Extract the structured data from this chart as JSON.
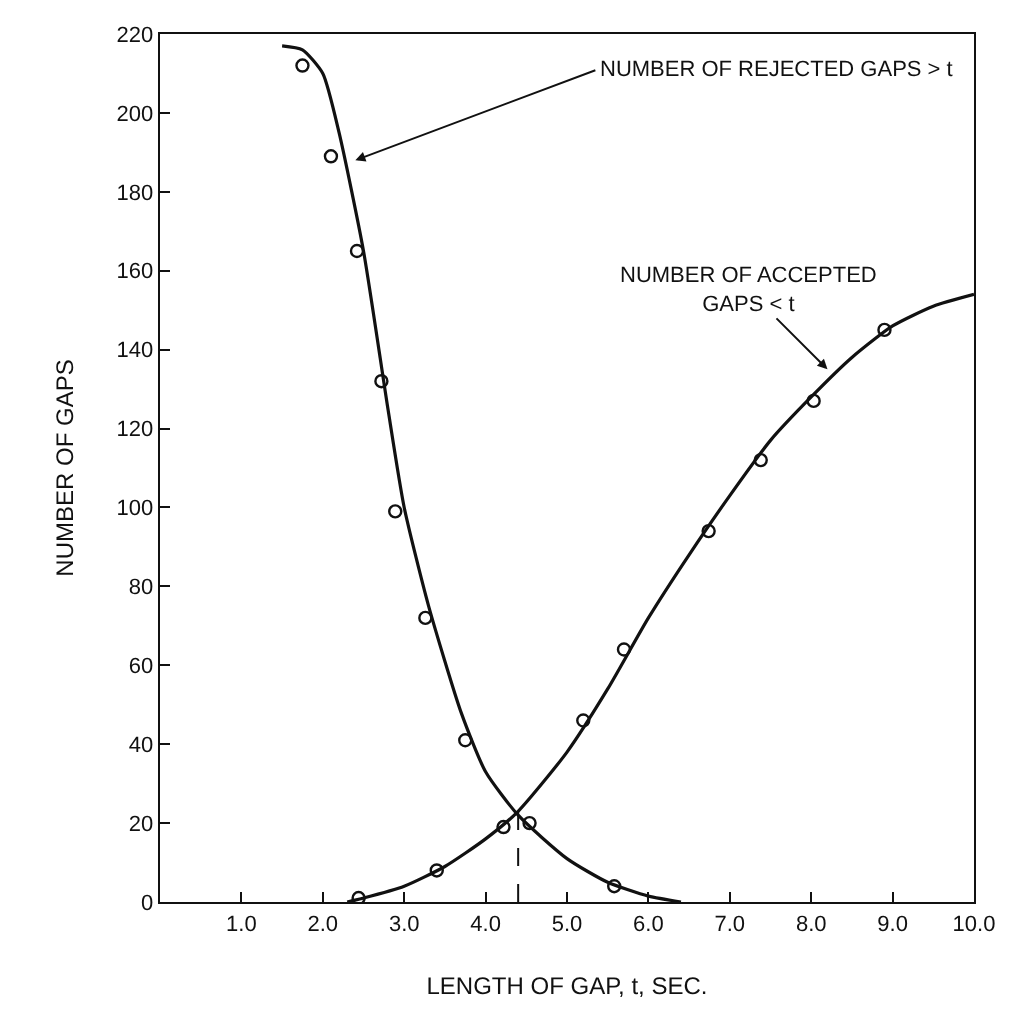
{
  "chart_data": {
    "type": "scatter",
    "xlabel": "LENGTH OF GAP, t, SEC.",
    "ylabel": "NUMBER OF GAPS",
    "xlim": [
      0,
      10
    ],
    "ylim": [
      0,
      220
    ],
    "xticks": [
      {
        "value": 1,
        "label": "1.0"
      },
      {
        "value": 2,
        "label": "2.0"
      },
      {
        "value": 3,
        "label": "3.0"
      },
      {
        "value": 4,
        "label": "4.0"
      },
      {
        "value": 5,
        "label": "5.0"
      },
      {
        "value": 6,
        "label": "6.0"
      },
      {
        "value": 7,
        "label": "7.0"
      },
      {
        "value": 8,
        "label": "8.0"
      },
      {
        "value": 9,
        "label": "9.0"
      },
      {
        "value": 10,
        "label": "10.0"
      }
    ],
    "yticks": [
      0,
      20,
      40,
      60,
      80,
      100,
      120,
      140,
      160,
      180,
      200,
      220
    ],
    "grid": false,
    "series": [
      {
        "type": "line",
        "marker": "none",
        "line_style": "solid",
        "color": "#111111",
        "x": [
          1.5,
          1.75,
          2.0,
          2.2,
          2.5,
          2.8,
          3.0,
          3.3,
          3.7,
          4.0,
          4.4,
          5.0,
          5.5,
          6.0,
          6.4
        ],
        "values": [
          217,
          216,
          210,
          195,
          165,
          125,
          100,
          75,
          48,
          33,
          22,
          11,
          5,
          1.5,
          0
        ]
      },
      {
        "type": "line",
        "marker": "none",
        "line_style": "solid",
        "color": "#111111",
        "x": [
          2.3,
          2.5,
          3.0,
          3.5,
          4.0,
          4.4,
          5.0,
          5.5,
          6.0,
          6.5,
          7.0,
          7.5,
          8.0,
          8.5,
          9.0,
          9.5,
          10.0
        ],
        "values": [
          0,
          1,
          4,
          9,
          16,
          23,
          38,
          54,
          72,
          88,
          103,
          117,
          128,
          138,
          146,
          151,
          154
        ]
      },
      {
        "marker": "circle",
        "color": "#111111",
        "x": [
          1.75,
          2.1,
          2.42,
          2.72,
          2.89,
          3.26,
          3.75,
          4.54,
          5.58
        ],
        "values": [
          212,
          189,
          165,
          132,
          99,
          72,
          41,
          20,
          4
        ]
      },
      {
        "marker": "circle",
        "color": "#111111",
        "x": [
          2.44,
          3.4,
          4.22,
          5.2,
          5.7,
          6.74,
          7.38,
          8.03,
          8.9
        ],
        "values": [
          1,
          8,
          19,
          46,
          64,
          94,
          112,
          127,
          145
        ]
      }
    ],
    "ref_lines": [
      {
        "axis": "x",
        "value": 4.4,
        "line_style": "dashed",
        "color": "#111111"
      }
    ],
    "annotations": [
      {
        "text": "NUMBER OF REJECTED GAPS > t",
        "x": 2.4,
        "y": 188
      },
      {
        "text": "NUMBER OF ACCEPTED\nGAPS < t",
        "x": 8.2,
        "y": 135
      }
    ]
  }
}
